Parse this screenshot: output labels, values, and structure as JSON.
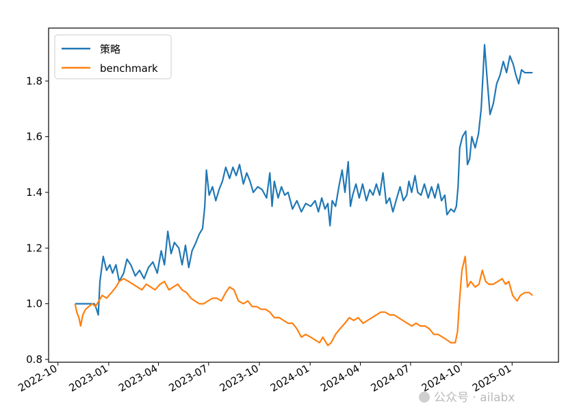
{
  "chart_data": {
    "type": "line",
    "title": "",
    "xlabel": "",
    "ylabel": "",
    "xlim": [
      "2022-09-14",
      "2025-03-26"
    ],
    "ylim": [
      0.79,
      1.99
    ],
    "yticks": [
      "0.8",
      "1.0",
      "1.2",
      "1.4",
      "1.6",
      "1.8"
    ],
    "xticks": [
      "2022-10",
      "2023-01",
      "2023-04",
      "2023-07",
      "2023-10",
      "2024-01",
      "2024-04",
      "2024-07",
      "2024-10",
      "2025-01"
    ],
    "grid": false,
    "legend_position": "top-left",
    "series": [
      {
        "name": "策略",
        "color": "#1f77b4",
        "points": [
          [
            "2022-11-01",
            1.0
          ],
          [
            "2022-11-20",
            1.0
          ],
          [
            "2022-12-01",
            1.0
          ],
          [
            "2022-12-06",
            1.0
          ],
          [
            "2022-12-10",
            0.98
          ],
          [
            "2022-12-13",
            0.96
          ],
          [
            "2022-12-16",
            1.08
          ],
          [
            "2022-12-22",
            1.17
          ],
          [
            "2022-12-28",
            1.12
          ],
          [
            "2023-01-03",
            1.14
          ],
          [
            "2023-01-08",
            1.11
          ],
          [
            "2023-01-14",
            1.14
          ],
          [
            "2023-01-20",
            1.08
          ],
          [
            "2023-01-28",
            1.11
          ],
          [
            "2023-02-03",
            1.16
          ],
          [
            "2023-02-10",
            1.14
          ],
          [
            "2023-02-18",
            1.1
          ],
          [
            "2023-02-26",
            1.12
          ],
          [
            "2023-03-06",
            1.09
          ],
          [
            "2023-03-14",
            1.13
          ],
          [
            "2023-03-22",
            1.15
          ],
          [
            "2023-03-30",
            1.11
          ],
          [
            "2023-04-06",
            1.19
          ],
          [
            "2023-04-12",
            1.14
          ],
          [
            "2023-04-18",
            1.26
          ],
          [
            "2023-04-24",
            1.18
          ],
          [
            "2023-04-30",
            1.22
          ],
          [
            "2023-05-08",
            1.2
          ],
          [
            "2023-05-14",
            1.14
          ],
          [
            "2023-05-20",
            1.21
          ],
          [
            "2023-05-26",
            1.13
          ],
          [
            "2023-06-01",
            1.19
          ],
          [
            "2023-06-08",
            1.22
          ],
          [
            "2023-06-14",
            1.25
          ],
          [
            "2023-06-20",
            1.27
          ],
          [
            "2023-06-24",
            1.35
          ],
          [
            "2023-06-27",
            1.48
          ],
          [
            "2023-07-02",
            1.39
          ],
          [
            "2023-07-08",
            1.42
          ],
          [
            "2023-07-14",
            1.37
          ],
          [
            "2023-07-20",
            1.41
          ],
          [
            "2023-07-26",
            1.44
          ],
          [
            "2023-08-01",
            1.49
          ],
          [
            "2023-08-08",
            1.45
          ],
          [
            "2023-08-14",
            1.49
          ],
          [
            "2023-08-20",
            1.46
          ],
          [
            "2023-08-26",
            1.5
          ],
          [
            "2023-09-02",
            1.43
          ],
          [
            "2023-09-08",
            1.47
          ],
          [
            "2023-09-14",
            1.44
          ],
          [
            "2023-09-20",
            1.4
          ],
          [
            "2023-09-28",
            1.42
          ],
          [
            "2023-10-06",
            1.41
          ],
          [
            "2023-10-14",
            1.38
          ],
          [
            "2023-10-20",
            1.47
          ],
          [
            "2023-10-24",
            1.35
          ],
          [
            "2023-10-28",
            1.44
          ],
          [
            "2023-11-04",
            1.38
          ],
          [
            "2023-11-10",
            1.42
          ],
          [
            "2023-11-16",
            1.39
          ],
          [
            "2023-11-22",
            1.4
          ],
          [
            "2023-11-30",
            1.34
          ],
          [
            "2023-12-08",
            1.37
          ],
          [
            "2023-12-16",
            1.33
          ],
          [
            "2023-12-24",
            1.36
          ],
          [
            "2024-01-02",
            1.35
          ],
          [
            "2024-01-10",
            1.37
          ],
          [
            "2024-01-16",
            1.33
          ],
          [
            "2024-01-22",
            1.38
          ],
          [
            "2024-01-28",
            1.34
          ],
          [
            "2024-02-02",
            1.36
          ],
          [
            "2024-02-06",
            1.28
          ],
          [
            "2024-02-10",
            1.37
          ],
          [
            "2024-02-16",
            1.35
          ],
          [
            "2024-02-22",
            1.42
          ],
          [
            "2024-02-28",
            1.48
          ],
          [
            "2024-03-04",
            1.4
          ],
          [
            "2024-03-10",
            1.51
          ],
          [
            "2024-03-14",
            1.35
          ],
          [
            "2024-03-18",
            1.39
          ],
          [
            "2024-03-24",
            1.43
          ],
          [
            "2024-03-30",
            1.38
          ],
          [
            "2024-04-05",
            1.43
          ],
          [
            "2024-04-12",
            1.37
          ],
          [
            "2024-04-18",
            1.41
          ],
          [
            "2024-04-24",
            1.39
          ],
          [
            "2024-04-30",
            1.43
          ],
          [
            "2024-05-06",
            1.39
          ],
          [
            "2024-05-12",
            1.47
          ],
          [
            "2024-05-18",
            1.36
          ],
          [
            "2024-05-24",
            1.38
          ],
          [
            "2024-05-30",
            1.33
          ],
          [
            "2024-06-06",
            1.38
          ],
          [
            "2024-06-12",
            1.42
          ],
          [
            "2024-06-18",
            1.37
          ],
          [
            "2024-06-24",
            1.39
          ],
          [
            "2024-06-28",
            1.44
          ],
          [
            "2024-07-03",
            1.4
          ],
          [
            "2024-07-09",
            1.46
          ],
          [
            "2024-07-14",
            1.4
          ],
          [
            "2024-07-20",
            1.39
          ],
          [
            "2024-07-26",
            1.43
          ],
          [
            "2024-08-02",
            1.38
          ],
          [
            "2024-08-08",
            1.42
          ],
          [
            "2024-08-14",
            1.38
          ],
          [
            "2024-08-20",
            1.43
          ],
          [
            "2024-08-26",
            1.37
          ],
          [
            "2024-09-01",
            1.39
          ],
          [
            "2024-09-05",
            1.32
          ],
          [
            "2024-09-12",
            1.34
          ],
          [
            "2024-09-18",
            1.33
          ],
          [
            "2024-09-22",
            1.35
          ],
          [
            "2024-09-25",
            1.42
          ],
          [
            "2024-09-28",
            1.56
          ],
          [
            "2024-10-03",
            1.6
          ],
          [
            "2024-10-09",
            1.62
          ],
          [
            "2024-10-12",
            1.5
          ],
          [
            "2024-10-16",
            1.52
          ],
          [
            "2024-10-20",
            1.6
          ],
          [
            "2024-10-26",
            1.56
          ],
          [
            "2024-11-01",
            1.61
          ],
          [
            "2024-11-06",
            1.7
          ],
          [
            "2024-11-12",
            1.93
          ],
          [
            "2024-11-17",
            1.8
          ],
          [
            "2024-11-22",
            1.68
          ],
          [
            "2024-11-28",
            1.72
          ],
          [
            "2024-12-04",
            1.79
          ],
          [
            "2024-12-10",
            1.82
          ],
          [
            "2024-12-16",
            1.87
          ],
          [
            "2024-12-22",
            1.83
          ],
          [
            "2024-12-28",
            1.89
          ],
          [
            "2025-01-03",
            1.86
          ],
          [
            "2025-01-08",
            1.82
          ],
          [
            "2025-01-13",
            1.79
          ],
          [
            "2025-01-18",
            1.84
          ],
          [
            "2025-01-24",
            1.83
          ],
          [
            "2025-02-01",
            1.83
          ],
          [
            "2025-02-07",
            1.83
          ]
        ]
      },
      {
        "name": "benchmark",
        "color": "#ff7f0e",
        "points": [
          [
            "2022-11-01",
            1.0
          ],
          [
            "2022-11-04",
            0.97
          ],
          [
            "2022-11-08",
            0.95
          ],
          [
            "2022-11-11",
            0.92
          ],
          [
            "2022-11-15",
            0.96
          ],
          [
            "2022-11-20",
            0.98
          ],
          [
            "2022-11-26",
            0.99
          ],
          [
            "2022-12-02",
            1.0
          ],
          [
            "2022-12-08",
            0.99
          ],
          [
            "2022-12-14",
            1.01
          ],
          [
            "2022-12-20",
            1.03
          ],
          [
            "2022-12-28",
            1.02
          ],
          [
            "2023-01-06",
            1.04
          ],
          [
            "2023-01-14",
            1.06
          ],
          [
            "2023-01-20",
            1.08
          ],
          [
            "2023-01-28",
            1.09
          ],
          [
            "2023-02-06",
            1.08
          ],
          [
            "2023-02-14",
            1.07
          ],
          [
            "2023-02-22",
            1.06
          ],
          [
            "2023-03-02",
            1.05
          ],
          [
            "2023-03-10",
            1.07
          ],
          [
            "2023-03-18",
            1.06
          ],
          [
            "2023-03-26",
            1.05
          ],
          [
            "2023-04-04",
            1.07
          ],
          [
            "2023-04-12",
            1.08
          ],
          [
            "2023-04-20",
            1.05
          ],
          [
            "2023-04-28",
            1.06
          ],
          [
            "2023-05-06",
            1.07
          ],
          [
            "2023-05-14",
            1.05
          ],
          [
            "2023-05-22",
            1.04
          ],
          [
            "2023-05-30",
            1.02
          ],
          [
            "2023-06-06",
            1.01
          ],
          [
            "2023-06-14",
            1.0
          ],
          [
            "2023-06-22",
            1.0
          ],
          [
            "2023-06-30",
            1.01
          ],
          [
            "2023-07-08",
            1.02
          ],
          [
            "2023-07-16",
            1.02
          ],
          [
            "2023-07-24",
            1.01
          ],
          [
            "2023-08-01",
            1.04
          ],
          [
            "2023-08-08",
            1.06
          ],
          [
            "2023-08-16",
            1.05
          ],
          [
            "2023-08-24",
            1.01
          ],
          [
            "2023-09-02",
            1.0
          ],
          [
            "2023-09-10",
            1.01
          ],
          [
            "2023-09-18",
            0.99
          ],
          [
            "2023-09-26",
            0.99
          ],
          [
            "2023-10-04",
            0.98
          ],
          [
            "2023-10-12",
            0.98
          ],
          [
            "2023-10-20",
            0.97
          ],
          [
            "2023-10-28",
            0.95
          ],
          [
            "2023-11-06",
            0.95
          ],
          [
            "2023-11-14",
            0.94
          ],
          [
            "2023-11-22",
            0.93
          ],
          [
            "2023-11-30",
            0.93
          ],
          [
            "2023-12-08",
            0.91
          ],
          [
            "2023-12-16",
            0.88
          ],
          [
            "2023-12-24",
            0.89
          ],
          [
            "2024-01-02",
            0.88
          ],
          [
            "2024-01-10",
            0.87
          ],
          [
            "2024-01-18",
            0.86
          ],
          [
            "2024-01-24",
            0.88
          ],
          [
            "2024-02-02",
            0.85
          ],
          [
            "2024-02-08",
            0.86
          ],
          [
            "2024-02-16",
            0.89
          ],
          [
            "2024-02-24",
            0.91
          ],
          [
            "2024-03-04",
            0.93
          ],
          [
            "2024-03-12",
            0.95
          ],
          [
            "2024-03-20",
            0.94
          ],
          [
            "2024-03-28",
            0.95
          ],
          [
            "2024-04-06",
            0.93
          ],
          [
            "2024-04-14",
            0.94
          ],
          [
            "2024-04-22",
            0.95
          ],
          [
            "2024-04-30",
            0.96
          ],
          [
            "2024-05-08",
            0.97
          ],
          [
            "2024-05-16",
            0.97
          ],
          [
            "2024-05-24",
            0.96
          ],
          [
            "2024-06-01",
            0.96
          ],
          [
            "2024-06-09",
            0.95
          ],
          [
            "2024-06-17",
            0.94
          ],
          [
            "2024-06-25",
            0.93
          ],
          [
            "2024-07-03",
            0.92
          ],
          [
            "2024-07-11",
            0.93
          ],
          [
            "2024-07-19",
            0.92
          ],
          [
            "2024-07-27",
            0.92
          ],
          [
            "2024-08-04",
            0.91
          ],
          [
            "2024-08-12",
            0.89
          ],
          [
            "2024-08-20",
            0.89
          ],
          [
            "2024-08-28",
            0.88
          ],
          [
            "2024-09-05",
            0.87
          ],
          [
            "2024-09-12",
            0.86
          ],
          [
            "2024-09-20",
            0.86
          ],
          [
            "2024-09-24",
            0.9
          ],
          [
            "2024-09-28",
            1.02
          ],
          [
            "2024-10-02",
            1.12
          ],
          [
            "2024-10-08",
            1.17
          ],
          [
            "2024-10-12",
            1.06
          ],
          [
            "2024-10-18",
            1.08
          ],
          [
            "2024-10-26",
            1.06
          ],
          [
            "2024-11-02",
            1.07
          ],
          [
            "2024-11-08",
            1.12
          ],
          [
            "2024-11-14",
            1.08
          ],
          [
            "2024-11-20",
            1.07
          ],
          [
            "2024-11-28",
            1.07
          ],
          [
            "2024-12-06",
            1.08
          ],
          [
            "2024-12-14",
            1.09
          ],
          [
            "2024-12-20",
            1.07
          ],
          [
            "2024-12-26",
            1.08
          ],
          [
            "2025-01-02",
            1.03
          ],
          [
            "2025-01-10",
            1.01
          ],
          [
            "2025-01-16",
            1.03
          ],
          [
            "2025-01-24",
            1.04
          ],
          [
            "2025-02-01",
            1.04
          ],
          [
            "2025-02-07",
            1.03
          ]
        ]
      }
    ]
  },
  "watermark": {
    "text": "公众号 · ailabx"
  }
}
